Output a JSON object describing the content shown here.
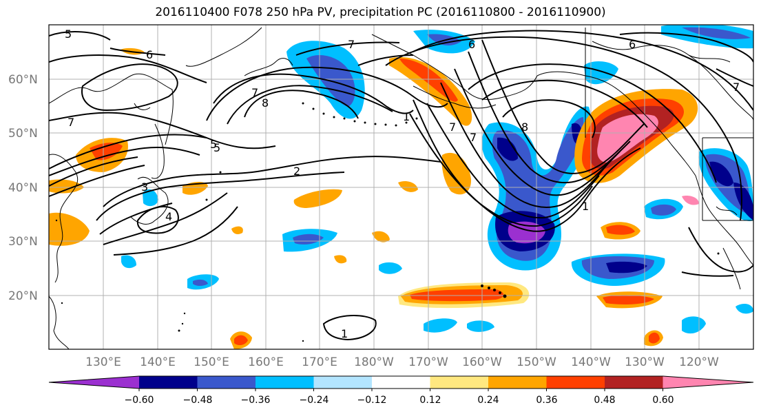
{
  "title": "2016110400 F078 250 hPa PV, precipitation PC (2016110800 - 2016110900)",
  "map": {
    "lat_labels": [
      "60°N",
      "50°N",
      "40°N",
      "30°N",
      "20°N"
    ],
    "lon_labels": [
      "130°E",
      "140°E",
      "150°E",
      "160°E",
      "170°E",
      "180°W",
      "170°W",
      "160°W",
      "150°W",
      "140°W",
      "130°W",
      "120°W"
    ],
    "pv_contour_labels": [
      "5",
      "6",
      "7",
      "5",
      "7",
      "6",
      "7",
      "8",
      "5",
      "2",
      "3",
      "4",
      "7",
      "1",
      "1",
      "8",
      "7",
      "6",
      "7",
      "1"
    ]
  },
  "colorbar": {
    "ticks": [
      "−0.60",
      "−0.48",
      "−0.36",
      "−0.24",
      "−0.12",
      "0.12",
      "0.24",
      "0.36",
      "0.48",
      "0.60"
    ],
    "colors": [
      "#9b30d0",
      "#00008b",
      "#3a58cc",
      "#00bfff",
      "#b3e5ff",
      "#ffffff",
      "#ffe880",
      "#ffa500",
      "#ff4000",
      "#b22222",
      "#ff85b0"
    ]
  }
}
